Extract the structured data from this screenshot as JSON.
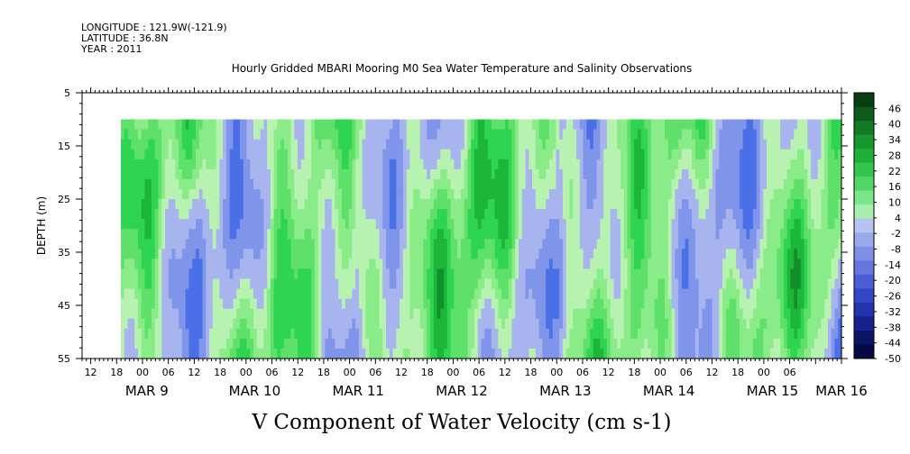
{
  "meta": {
    "longitude": "LONGITUDE : 121.9W(-121.9)",
    "latitude": "LATITUDE : 36.8N",
    "year": "YEAR : 2011"
  },
  "chart_data": {
    "type": "heatmap",
    "title": "Hourly Gridded MBARI Mooring M0 Sea Water Temperature and Salinity Observations",
    "xlabel": "",
    "ylabel": "DEPTH (m)",
    "bottom_title": "V Component of Water Velocity (cm s-1)",
    "y_ticks": [
      5,
      15,
      25,
      35,
      45,
      55
    ],
    "y_range": [
      5,
      55
    ],
    "y_inverted": true,
    "data_depth_range": [
      10,
      55
    ],
    "x_hour_ticks": [
      "12",
      "18",
      "00",
      "06",
      "12",
      "18",
      "00",
      "06",
      "12",
      "18",
      "00",
      "06",
      "12",
      "18",
      "00",
      "06",
      "12",
      "18",
      "00",
      "06",
      "12",
      "18",
      "00",
      "06",
      "12",
      "18",
      "00",
      "06"
    ],
    "x_date_labels": [
      "MAR  9",
      "MAR 10",
      "MAR 11",
      "MAR 12",
      "MAR 13",
      "MAR 14",
      "MAR 15",
      "MAR 16"
    ],
    "x_range_hours": [
      -14,
      162
    ],
    "data_start_hour": -5,
    "date_label_hours": [
      -4,
      20,
      44,
      68,
      92,
      116,
      140,
      156
    ],
    "colorbar_levels": [
      "46",
      "40",
      "34",
      "28",
      "22",
      "16",
      "10",
      "4",
      "-2",
      "-8",
      "-14",
      "-20",
      "-26",
      "-32",
      "-38",
      "-44",
      "-50"
    ],
    "colorbar_range": [
      -50,
      52
    ],
    "colors": {
      "blue_scale": [
        "#0a0a6e",
        "#1d2d9c",
        "#2d4bd0",
        "#4a6fe6",
        "#7f95ea",
        "#a8b4ee"
      ],
      "green_scale": [
        "#b8f2b0",
        "#8aec88",
        "#5ee06a",
        "#2fd451",
        "#1cb63a",
        "#118f28",
        "#0b6a1d",
        "#0a4a14"
      ]
    }
  }
}
